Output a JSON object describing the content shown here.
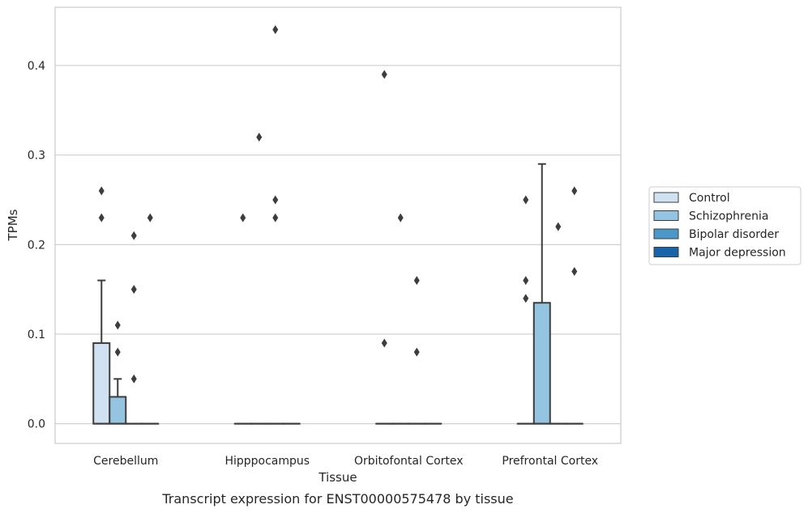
{
  "chart_data": {
    "type": "boxplot",
    "title": "",
    "caption": "Transcript expression for ENST00000575478 by tissue",
    "xlabel": "Tissue",
    "ylabel": "TPMs",
    "ylim": [
      -0.022,
      0.465
    ],
    "yticks": [
      "0.0",
      "0.1",
      "0.2",
      "0.3",
      "0.4"
    ],
    "grid": "horizontal",
    "legend_position": "right",
    "categories": [
      "Cerebellum",
      "Hipppocampus",
      "Orbitofontal Cortex",
      "Prefrontal Cortex"
    ],
    "series": [
      {
        "name": "Control",
        "color": "#d0e1f2",
        "boxes": [
          {
            "q1": 0,
            "median": 0,
            "q3": 0.09,
            "whisker_low": 0,
            "whisker_high": 0.16,
            "outliers": [
              0.26,
              0.23
            ]
          },
          {
            "q1": 0,
            "median": 0,
            "q3": 0,
            "whisker_low": 0,
            "whisker_high": 0,
            "outliers": [
              0.23
            ]
          },
          {
            "q1": 0,
            "median": 0,
            "q3": 0,
            "whisker_low": 0,
            "whisker_high": 0,
            "outliers": [
              0.09,
              0.39
            ]
          },
          {
            "q1": 0,
            "median": 0,
            "q3": 0,
            "whisker_low": 0,
            "whisker_high": 0,
            "outliers": [
              0.25,
              0.16,
              0.14
            ]
          }
        ]
      },
      {
        "name": "Schizophrenia",
        "color": "#94c4df",
        "boxes": [
          {
            "q1": 0,
            "median": 0,
            "q3": 0.03,
            "whisker_low": 0,
            "whisker_high": 0.05,
            "outliers": [
              0.11,
              0.08
            ]
          },
          {
            "q1": 0,
            "median": 0,
            "q3": 0,
            "whisker_low": 0,
            "whisker_high": 0,
            "outliers": [
              0.32
            ]
          },
          {
            "q1": 0,
            "median": 0,
            "q3": 0,
            "whisker_low": 0,
            "whisker_high": 0,
            "outliers": [
              0.23
            ]
          },
          {
            "q1": 0,
            "median": 0,
            "q3": 0.135,
            "whisker_low": 0,
            "whisker_high": 0.29,
            "outliers": []
          }
        ]
      },
      {
        "name": "Bipolar disorder",
        "color": "#4a98c9",
        "boxes": [
          {
            "q1": 0,
            "median": 0,
            "q3": 0,
            "whisker_low": 0,
            "whisker_high": 0,
            "outliers": [
              0.21,
              0.15,
              0.05
            ]
          },
          {
            "q1": 0,
            "median": 0,
            "q3": 0,
            "whisker_low": 0,
            "whisker_high": 0,
            "outliers": [
              0.44,
              0.25,
              0.23
            ]
          },
          {
            "q1": 0,
            "median": 0,
            "q3": 0,
            "whisker_low": 0,
            "whisker_high": 0,
            "outliers": [
              0.16,
              0.08
            ]
          },
          {
            "q1": 0,
            "median": 0,
            "q3": 0,
            "whisker_low": 0,
            "whisker_high": 0,
            "outliers": [
              0.22
            ]
          }
        ]
      },
      {
        "name": "Major depression",
        "color": "#1764ab",
        "boxes": [
          {
            "q1": 0,
            "median": 0,
            "q3": 0,
            "whisker_low": 0,
            "whisker_high": 0,
            "outliers": [
              0.23
            ]
          },
          {
            "q1": 0,
            "median": 0,
            "q3": 0,
            "whisker_low": 0,
            "whisker_high": 0,
            "outliers": []
          },
          {
            "q1": 0,
            "median": 0,
            "q3": 0,
            "whisker_low": 0,
            "whisker_high": 0,
            "outliers": []
          },
          {
            "q1": 0,
            "median": 0,
            "q3": 0,
            "whisker_low": 0,
            "whisker_high": 0,
            "outliers": [
              0.26,
              0.17
            ]
          }
        ]
      }
    ]
  }
}
